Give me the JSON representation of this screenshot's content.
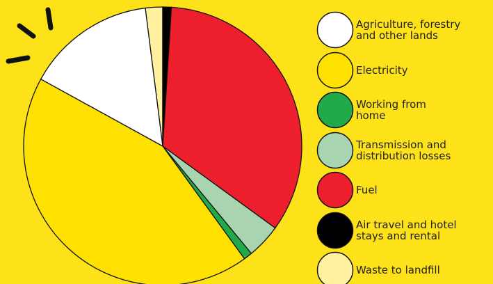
{
  "chart_data": {
    "type": "pie",
    "categories": [
      "Agriculture, forestry\nand other lands",
      "Electricity",
      "Working from\nhome",
      "Transmission and\ndistribution losses",
      "Fuel",
      "Air travel and hotel\nstays and rental",
      "Waste to landfill"
    ],
    "values": [
      15,
      43,
      1,
      4,
      34,
      1,
      2
    ],
    "colors": [
      "#ffffff",
      "#fee100",
      "#22a94a",
      "#a8d5b0",
      "#ee1f2d",
      "#000000",
      "#fff1a0"
    ]
  }
}
